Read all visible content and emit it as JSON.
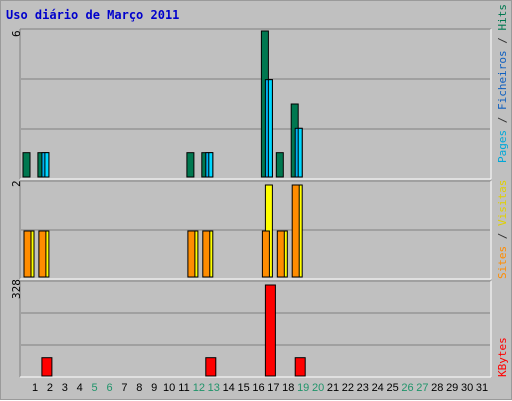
{
  "title": "Uso diário de Março 2011",
  "colors": {
    "hits": "#007850",
    "files": "#00b0f0",
    "pages": "#00d8ff",
    "visits": "#ffff00",
    "sites": "#ff8c00",
    "kbytes": "#ff0000",
    "weekend_label": "#20946a"
  },
  "chart_data": [
    {
      "type": "bar",
      "days": [
        1,
        2,
        3,
        4,
        5,
        6,
        7,
        8,
        9,
        10,
        11,
        12,
        13,
        14,
        15,
        16,
        17,
        18,
        19,
        20,
        21,
        22,
        23,
        24,
        25,
        26,
        27,
        28,
        29,
        30,
        31
      ],
      "ymax_label": "6",
      "ylim": [
        0,
        6
      ],
      "legend": [
        "Pages",
        "Ficheiros",
        "Hits"
      ],
      "series": [
        {
          "name": "Hits",
          "values": [
            1,
            1,
            0,
            0,
            0,
            0,
            0,
            0,
            0,
            0,
            0,
            1,
            1,
            0,
            0,
            0,
            6,
            1,
            3,
            0,
            0,
            0,
            0,
            0,
            0,
            0,
            0,
            0,
            0,
            0,
            0
          ]
        },
        {
          "name": "Ficheiros",
          "values": [
            0,
            1,
            0,
            0,
            0,
            0,
            0,
            0,
            0,
            0,
            0,
            0,
            1,
            0,
            0,
            0,
            4,
            0,
            2,
            0,
            0,
            0,
            0,
            0,
            0,
            0,
            0,
            0,
            0,
            0,
            0
          ]
        },
        {
          "name": "Pages",
          "values": [
            0,
            1,
            0,
            0,
            0,
            0,
            0,
            0,
            0,
            0,
            0,
            0,
            1,
            0,
            0,
            0,
            4,
            0,
            2,
            0,
            0,
            0,
            0,
            0,
            0,
            0,
            0,
            0,
            0,
            0,
            0
          ]
        }
      ]
    },
    {
      "type": "bar",
      "ymax_label": "2",
      "ylim": [
        0,
        2
      ],
      "legend": [
        "Sites",
        "Visitas"
      ],
      "series": [
        {
          "name": "Visitas",
          "values": [
            1,
            1,
            0,
            0,
            0,
            0,
            0,
            0,
            0,
            0,
            0,
            1,
            1,
            0,
            0,
            0,
            2,
            1,
            2,
            0,
            0,
            0,
            0,
            0,
            0,
            0,
            0,
            0,
            0,
            0,
            0
          ]
        },
        {
          "name": "Sites",
          "values": [
            1,
            1,
            0,
            0,
            0,
            0,
            0,
            0,
            0,
            0,
            0,
            1,
            1,
            0,
            0,
            0,
            1,
            1,
            2,
            0,
            0,
            0,
            0,
            0,
            0,
            0,
            0,
            0,
            0,
            0,
            0
          ]
        }
      ]
    },
    {
      "type": "bar",
      "ymax_label": "328",
      "ylim": [
        0,
        328
      ],
      "legend": [
        "KBytes"
      ],
      "series": [
        {
          "name": "KBytes",
          "values": [
            0,
            66,
            0,
            0,
            0,
            0,
            0,
            0,
            0,
            0,
            0,
            0,
            66,
            0,
            0,
            0,
            328,
            0,
            66,
            0,
            0,
            0,
            0,
            0,
            0,
            0,
            0,
            0,
            0,
            0,
            0
          ]
        }
      ]
    }
  ],
  "weekend_days": [
    5,
    6,
    12,
    13,
    19,
    20,
    26,
    27
  ]
}
